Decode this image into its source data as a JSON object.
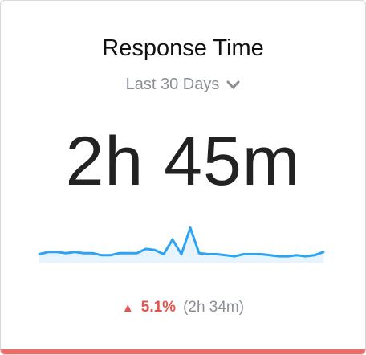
{
  "card": {
    "title": "Response Time",
    "period": {
      "selected": "Last 30 Days",
      "icon": "chevron-down-icon"
    },
    "value": "2h 45m",
    "delta": {
      "direction_icon": "triangle-up-icon",
      "arrow": "▲",
      "percent": "5.1%",
      "previous": "(2h 34m)"
    },
    "colors": {
      "line": "#2ea3f2",
      "fill": "#e8f4fd",
      "negative": "#e5534b",
      "accent_bar": "#f06a68"
    }
  },
  "chart_data": {
    "type": "line",
    "series": [
      {
        "values": [
          48,
          50,
          50,
          49,
          50,
          49,
          49,
          47,
          47,
          49,
          49,
          49,
          53,
          52,
          48,
          62,
          48,
          73,
          49,
          48,
          48,
          47,
          46,
          48,
          48,
          48,
          47,
          46,
          46,
          47,
          46,
          47,
          50
        ]
      }
    ],
    "ylim": [
      40,
      78
    ],
    "grid": false
  }
}
